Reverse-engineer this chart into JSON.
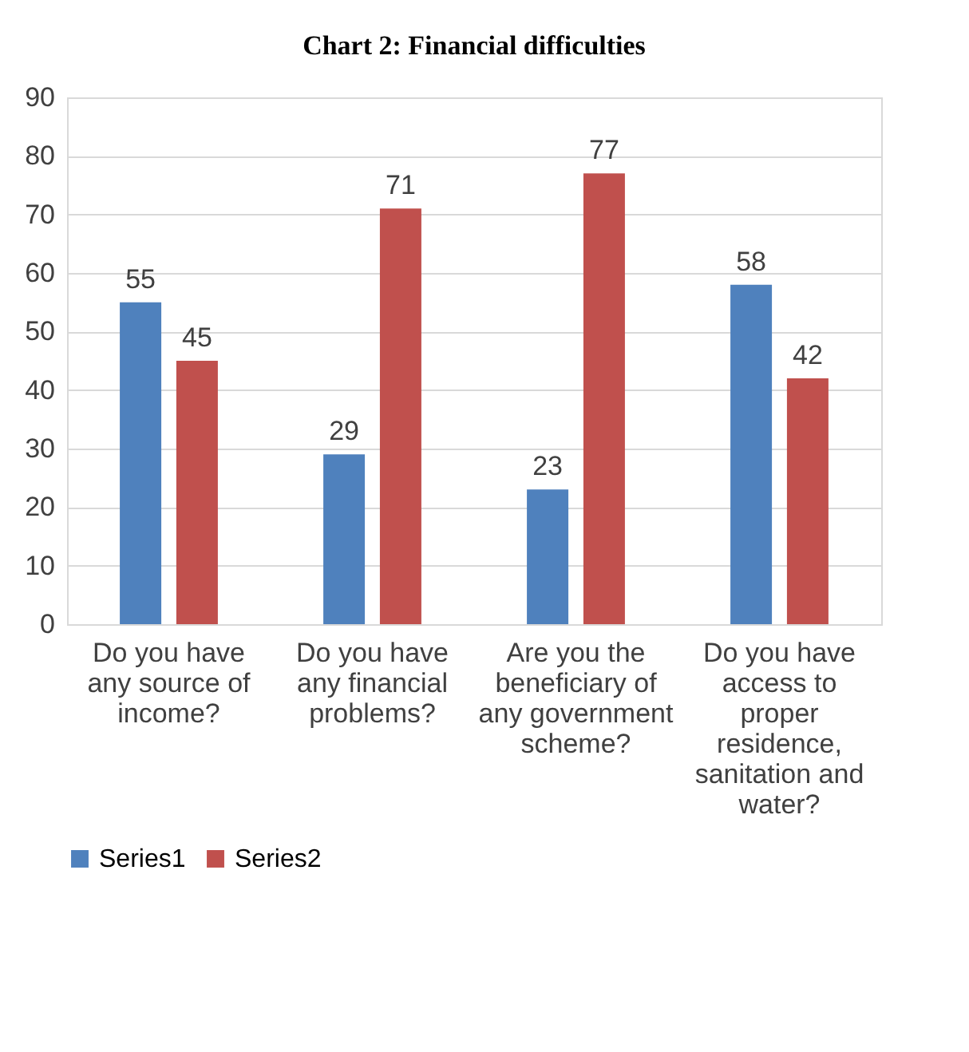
{
  "chart_data": {
    "type": "bar",
    "title": "Chart 2: Financial difficulties",
    "categories": [
      "Do you have any source of income?",
      "Do you have any financial problems?",
      "Are you the beneficiary of any government scheme?",
      "Do you have access to proper residence, sanitation and water?"
    ],
    "series": [
      {
        "name": "Series1",
        "color": "#4f81bd",
        "values": [
          55,
          29,
          23,
          58
        ]
      },
      {
        "name": "Series2",
        "color": "#c0504d",
        "values": [
          45,
          71,
          77,
          42
        ]
      }
    ],
    "ylim": [
      0,
      90
    ],
    "yticks": [
      0,
      10,
      20,
      30,
      40,
      50,
      60,
      70,
      80,
      90
    ],
    "grid": "y",
    "legend": "bottom",
    "data_labels": true
  }
}
